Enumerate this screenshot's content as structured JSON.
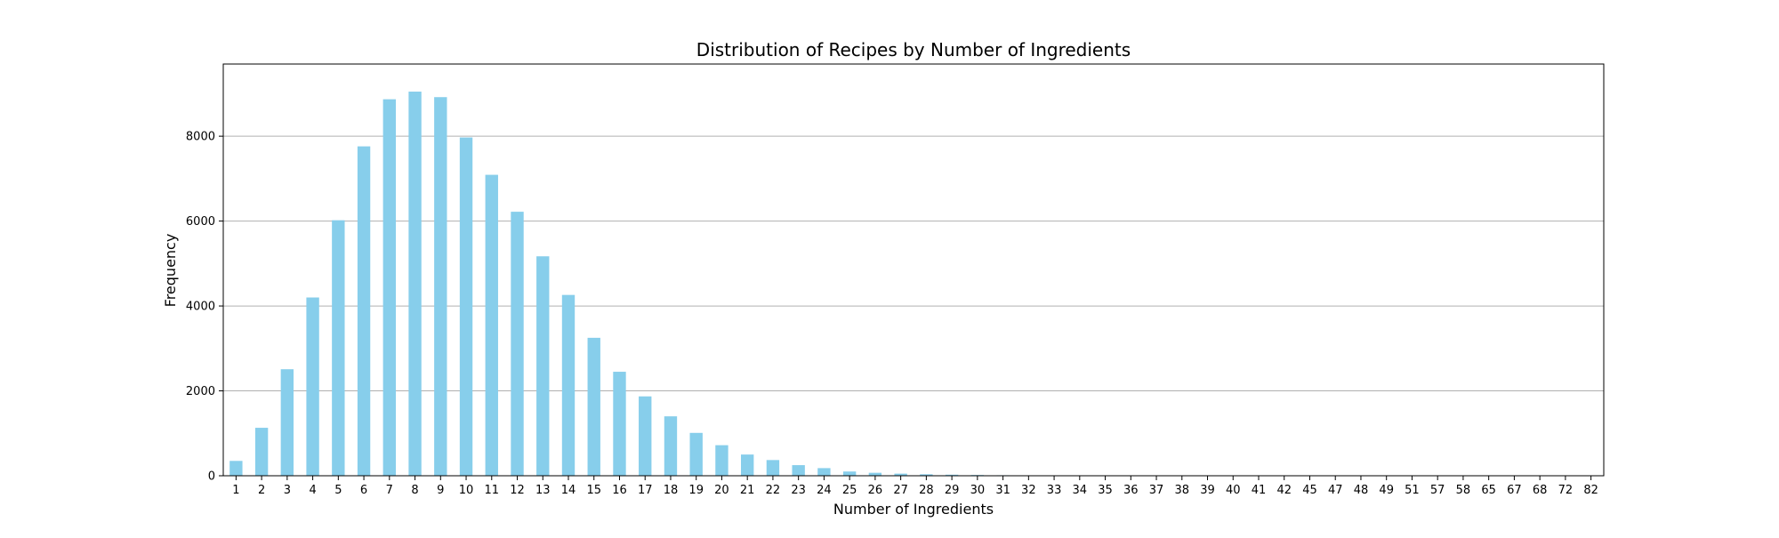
{
  "chart_data": {
    "type": "bar",
    "title": "Distribution of Recipes by Number of Ingredients",
    "xlabel": "Number of Ingredients",
    "ylabel": "Frequency",
    "ylim": [
      0,
      9700
    ],
    "yticks": [
      0,
      2000,
      4000,
      6000,
      8000
    ],
    "grid": "horizontal",
    "bar_color": "#87ceeb",
    "categories": [
      "1",
      "2",
      "3",
      "4",
      "5",
      "6",
      "7",
      "8",
      "9",
      "10",
      "11",
      "12",
      "13",
      "14",
      "15",
      "16",
      "17",
      "18",
      "19",
      "20",
      "21",
      "22",
      "23",
      "24",
      "25",
      "26",
      "27",
      "28",
      "29",
      "30",
      "31",
      "32",
      "33",
      "34",
      "35",
      "36",
      "37",
      "38",
      "39",
      "40",
      "41",
      "42",
      "45",
      "47",
      "48",
      "49",
      "51",
      "57",
      "58",
      "65",
      "67",
      "68",
      "72",
      "82"
    ],
    "values": [
      350,
      1130,
      2510,
      4200,
      6020,
      7760,
      8870,
      9050,
      8920,
      7970,
      7090,
      6220,
      5170,
      4260,
      3250,
      2450,
      1870,
      1400,
      1010,
      720,
      500,
      370,
      250,
      180,
      100,
      70,
      50,
      35,
      25,
      18,
      12,
      10,
      7,
      5,
      4,
      3,
      2,
      2,
      1,
      1,
      1,
      1,
      1,
      1,
      1,
      1,
      1,
      1,
      1,
      1,
      1,
      1,
      1,
      1
    ]
  }
}
